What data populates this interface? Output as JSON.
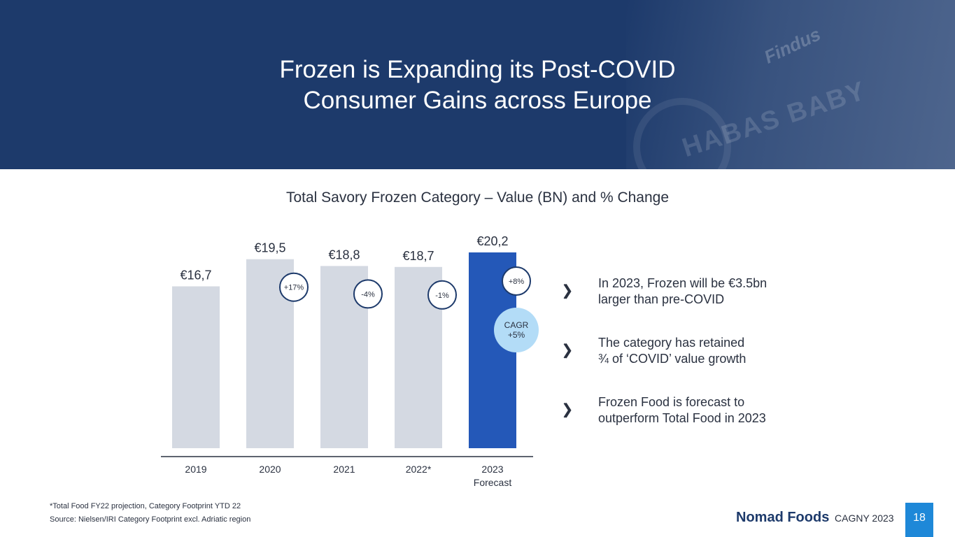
{
  "slide": {
    "title_line1": "Frozen is Expanding its Post-COVID",
    "title_line2": "Consumer Gains across Europe",
    "bg_text1": "Findus",
    "bg_text2": "HABAS BABY"
  },
  "chart_data": {
    "type": "bar",
    "title": "Total Savory Frozen Category – Value (BN) and % Change",
    "categories": [
      "2019",
      "2020",
      "2021",
      "2022*",
      "2023 Forecast"
    ],
    "values": [
      16.7,
      19.5,
      18.8,
      18.7,
      20.2
    ],
    "value_labels": [
      "€16,7",
      "€19,5",
      "€18,8",
      "€18,7",
      "€20,2"
    ],
    "pct_change_labels": [
      "",
      "+17%",
      "-4%",
      "-1%",
      "+8%"
    ],
    "cagr_label_line1": "CAGR",
    "cagr_label_line2": "+5%",
    "bar_colors": [
      "#d4d9e2",
      "#d4d9e2",
      "#d4d9e2",
      "#d4d9e2",
      "#2458b8"
    ],
    "ylim": [
      0,
      20.2
    ],
    "xlabel": "",
    "ylabel": ""
  },
  "bullets": [
    {
      "line1": "In 2023, Frozen will be €3.5bn",
      "line2": "larger than pre-COVID"
    },
    {
      "line1": "The category has retained",
      "line2": "¾ of ‘COVID’ value growth"
    },
    {
      "line1": "Frozen Food is forecast to",
      "line2": "outperform Total Food in 2023"
    }
  ],
  "footer": {
    "note1": "*Total Food FY22 projection, Category Footprint YTD 22",
    "note2": "Source: Nielsen/IRI Category Footprint excl. Adriatic region",
    "brand": "Nomad Foods",
    "event": "CAGNY 2023",
    "page": "18"
  },
  "colors": {
    "header_bg": "#1d3a6b",
    "accent": "#2458b8",
    "cagr_bubble": "#b3dcf7",
    "page_badge": "#1e88d8"
  }
}
